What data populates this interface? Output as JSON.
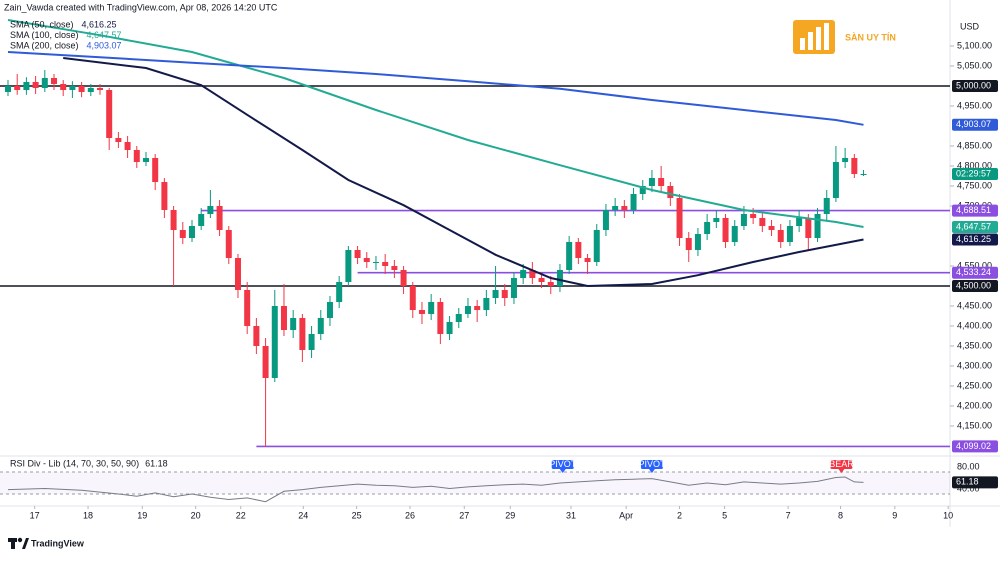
{
  "header": {
    "attribution": "Zain_Vawda created with TradingView.com, Apr 08, 2026 14:20 UTC",
    "currency": "USD",
    "brand": "SÀN UY TÍN",
    "footer": "TradingView",
    "countdown": "02:29:57"
  },
  "chart_data": [
    {
      "type": "candlestick",
      "up_color": "#089981",
      "down_color": "#f23645",
      "xlim": [
        -0.87,
        102.4
      ],
      "ylim": [
        4077.5,
        5180
      ],
      "x": [
        0,
        1,
        2,
        3,
        4,
        5,
        6,
        7,
        8,
        9,
        10,
        11,
        12,
        13,
        14,
        15,
        16,
        17,
        18,
        19,
        20,
        21,
        22,
        23,
        24,
        25,
        26,
        27,
        28,
        29,
        30,
        31,
        32,
        33,
        34,
        35,
        36,
        37,
        38,
        39,
        40,
        41,
        42,
        43,
        44,
        45,
        46,
        47,
        48,
        49,
        50,
        51,
        52,
        53,
        54,
        55,
        56,
        57,
        58,
        59,
        60,
        61,
        62,
        63,
        64,
        65,
        66,
        67,
        68,
        69,
        70,
        71,
        72,
        73,
        74,
        75,
        76,
        77,
        78,
        79,
        80,
        81,
        82,
        83,
        84,
        85,
        86,
        87,
        88,
        89,
        90,
        91,
        92,
        93
      ],
      "open": [
        4985,
        5000,
        4990,
        5010,
        4995,
        5020,
        5005,
        4990,
        5000,
        4985,
        4995,
        4990,
        4870,
        4860,
        4840,
        4810,
        4820,
        4760,
        4690,
        4640,
        4620,
        4650,
        4680,
        4700,
        4640,
        4570,
        4490,
        4400,
        4350,
        4270,
        4450,
        4390,
        4420,
        4340,
        4380,
        4420,
        4460,
        4510,
        4590,
        4570,
        4560,
        4560,
        4550,
        4540,
        4500,
        4440,
        4430,
        4460,
        4380,
        4410,
        4430,
        4450,
        4440,
        4470,
        4490,
        4470,
        4520,
        4540,
        4520,
        4510,
        4500,
        4540,
        4610,
        4570,
        4560,
        4640,
        4690,
        4700,
        4690,
        4730,
        4750,
        4770,
        4750,
        4720,
        4620,
        4590,
        4630,
        4660,
        4670,
        4610,
        4650,
        4680,
        4670,
        4650,
        4640,
        4610,
        4650,
        4670,
        4620,
        4680,
        4720,
        4810,
        4820,
        4780
      ],
      "high": [
        5015,
        5030,
        5022,
        5025,
        5040,
        5030,
        5015,
        5012,
        5010,
        5005,
        5005,
        4995,
        4885,
        4875,
        4850,
        4835,
        4830,
        4770,
        4700,
        4660,
        4665,
        4695,
        4740,
        4715,
        4650,
        4580,
        4510,
        4420,
        4370,
        4490,
        4505,
        4440,
        4430,
        4400,
        4440,
        4475,
        4525,
        4600,
        4600,
        4585,
        4575,
        4580,
        4565,
        4550,
        4510,
        4460,
        4480,
        4470,
        4425,
        4445,
        4470,
        4465,
        4490,
        4550,
        4505,
        4535,
        4555,
        4560,
        4535,
        4525,
        4555,
        4625,
        4620,
        4580,
        4655,
        4705,
        4720,
        4715,
        4745,
        4765,
        4790,
        4800,
        4760,
        4730,
        4635,
        4645,
        4680,
        4690,
        4680,
        4665,
        4700,
        4695,
        4685,
        4665,
        4655,
        4665,
        4690,
        4680,
        4695,
        4740,
        4850,
        4845,
        4830,
        4790
      ],
      "low": [
        4975,
        4978,
        4978,
        4980,
        4985,
        4990,
        4975,
        4970,
        4972,
        4975,
        4978,
        4840,
        4845,
        4820,
        4795,
        4800,
        4740,
        4670,
        4500,
        4605,
        4610,
        4640,
        4670,
        4625,
        4555,
        4470,
        4380,
        4330,
        4099,
        4260,
        4375,
        4370,
        4310,
        4320,
        4365,
        4400,
        4445,
        4500,
        4555,
        4545,
        4540,
        4530,
        4520,
        4480,
        4420,
        4405,
        4415,
        4355,
        4365,
        4395,
        4420,
        4410,
        4425,
        4455,
        4450,
        4455,
        4505,
        4505,
        4495,
        4480,
        4485,
        4530,
        4555,
        4530,
        4550,
        4625,
        4675,
        4670,
        4680,
        4715,
        4735,
        4735,
        4700,
        4600,
        4560,
        4575,
        4615,
        4645,
        4595,
        4600,
        4640,
        4655,
        4635,
        4625,
        4595,
        4600,
        4635,
        4590,
        4610,
        4665,
        4710,
        4795,
        4770,
        4775
      ],
      "close": [
        5000,
        4990,
        5010,
        4995,
        5020,
        5005,
        4990,
        5000,
        4985,
        4995,
        4990,
        4870,
        4860,
        4840,
        4810,
        4820,
        4760,
        4690,
        4640,
        4620,
        4650,
        4680,
        4700,
        4640,
        4570,
        4490,
        4400,
        4350,
        4270,
        4450,
        4390,
        4420,
        4340,
        4380,
        4420,
        4460,
        4510,
        4590,
        4570,
        4560,
        4560,
        4550,
        4540,
        4500,
        4440,
        4430,
        4460,
        4380,
        4410,
        4430,
        4450,
        4440,
        4470,
        4490,
        4470,
        4520,
        4540,
        4520,
        4510,
        4500,
        4540,
        4610,
        4570,
        4560,
        4640,
        4690,
        4700,
        4690,
        4730,
        4750,
        4770,
        4750,
        4720,
        4620,
        4590,
        4630,
        4660,
        4670,
        4610,
        4650,
        4680,
        4670,
        4650,
        4640,
        4610,
        4650,
        4670,
        4620,
        4680,
        4720,
        4810,
        4820,
        4780,
        4780
      ],
      "series": [
        {
          "name": "SMA (50, close)",
          "color": "#131a4a",
          "last_label": "4,616.25",
          "x": [
            6,
            15,
            21,
            26,
            32,
            37,
            43,
            48,
            53,
            59,
            63,
            70,
            75,
            81,
            86,
            93
          ],
          "values": [
            5070,
            5045,
            5002,
            4928,
            4840,
            4765,
            4702,
            4640,
            4578,
            4520,
            4500,
            4505,
            4527,
            4560,
            4585,
            4616.25
          ]
        },
        {
          "name": "SMA (100, close)",
          "color": "#22ab94",
          "last_label": "4,647.57",
          "x": [
            0,
            10,
            20,
            30,
            40,
            50,
            60,
            70,
            80,
            90,
            93
          ],
          "values": [
            5165,
            5127,
            5085,
            5020,
            4940,
            4865,
            4802,
            4740,
            4690,
            4660,
            4647.57
          ]
        },
        {
          "name": "SMA (200, close)",
          "color": "#2f5bd8",
          "last_label": "4,903.07",
          "x": [
            0,
            10,
            20,
            30,
            40,
            50,
            60,
            70,
            80,
            90,
            93
          ],
          "values": [
            5085,
            5072,
            5058,
            5045,
            5030,
            5012,
            4993,
            4965,
            4940,
            4915,
            4903.07
          ]
        }
      ],
      "levels": [
        {
          "value": 5000,
          "label": "5,000.00",
          "color": "#131722",
          "start": -0.87
        },
        {
          "value": 4500,
          "label": "4,500.00",
          "color": "#131722",
          "start": -0.87
        },
        {
          "value": 4688.51,
          "label": "4,688.51",
          "color": "#8a4fe0",
          "start": 21
        },
        {
          "value": 4533.24,
          "label": "4,533.24",
          "color": "#8a4fe0",
          "start": 38
        },
        {
          "value": 4099.02,
          "label": "4,099.02",
          "color": "#8a4fe0",
          "start": 27
        }
      ],
      "yticks": [
        {
          "value": 5100,
          "label": "5,100.00"
        },
        {
          "value": 5050,
          "label": "5,050.00"
        },
        {
          "value": 4950,
          "label": "4,950.00"
        },
        {
          "value": 4850,
          "label": "4,850.00"
        },
        {
          "value": 4800,
          "label": "4,800.00"
        },
        {
          "value": 4750,
          "label": "4,750.00"
        },
        {
          "value": 4700,
          "label": "4,700.00"
        },
        {
          "value": 4550,
          "label": "4,550.00"
        },
        {
          "value": 4450,
          "label": "4,450.00"
        },
        {
          "value": 4400,
          "label": "4,400.00"
        },
        {
          "value": 4350,
          "label": "4,350.00"
        },
        {
          "value": 4300,
          "label": "4,300.00"
        },
        {
          "value": 4250,
          "label": "4,250.00"
        },
        {
          "value": 4200,
          "label": "4,200.00"
        },
        {
          "value": 4150,
          "label": "4,150.00"
        }
      ],
      "xticks": [
        {
          "value": 2.9,
          "label": "17"
        },
        {
          "value": 8.7,
          "label": "18"
        },
        {
          "value": 14.6,
          "label": "19"
        },
        {
          "value": 20.4,
          "label": "20"
        },
        {
          "value": 25.3,
          "label": "22"
        },
        {
          "value": 32.1,
          "label": "24"
        },
        {
          "value": 37.9,
          "label": "25"
        },
        {
          "value": 43.7,
          "label": "26"
        },
        {
          "value": 49.6,
          "label": "27"
        },
        {
          "value": 54.6,
          "label": "29"
        },
        {
          "value": 61.2,
          "label": "31"
        },
        {
          "value": 67.2,
          "label": "Apr"
        },
        {
          "value": 73,
          "label": "2"
        },
        {
          "value": 77.9,
          "label": "5"
        },
        {
          "value": 84.8,
          "label": "7"
        },
        {
          "value": 90.5,
          "label": "8"
        },
        {
          "value": 96.4,
          "label": "9"
        },
        {
          "value": 102.2,
          "label": "10"
        }
      ]
    },
    {
      "type": "line",
      "title": "RSI Div - Lib (14, 70, 30, 50, 90)",
      "color": "#787b86",
      "xlim": [
        -0.87,
        102.4
      ],
      "ylim": [
        20,
        105.5
      ],
      "x": [
        0,
        4,
        8,
        12,
        14,
        16,
        18,
        20,
        22,
        24,
        26,
        28,
        30,
        32,
        34,
        36,
        38,
        40,
        42,
        44,
        46,
        48,
        50,
        52,
        54,
        56,
        58,
        60,
        62,
        64,
        66,
        68,
        70,
        72,
        74,
        76,
        78,
        80,
        82,
        84,
        86,
        88,
        90,
        91,
        92,
        93
      ],
      "values": [
        48,
        50,
        47,
        40,
        36,
        42,
        35,
        40,
        34,
        30,
        33,
        26,
        45,
        48,
        52,
        55,
        58,
        56,
        55,
        52,
        54,
        50,
        53,
        55,
        57,
        58,
        56,
        60,
        62,
        64,
        66,
        67,
        68,
        62,
        56,
        60,
        57,
        62,
        60,
        58,
        60,
        63,
        70,
        71,
        62,
        61.18
      ],
      "yticks": [
        {
          "value": 80,
          "label": "80.00"
        },
        {
          "value": 40,
          "label": "40.00"
        }
      ],
      "annotations": [
        {
          "label": "PIVOT",
          "x": 60.3,
          "color": "#2962ff"
        },
        {
          "label": "PIVOT",
          "x": 70,
          "color": "#2962ff"
        },
        {
          "label": "BEAR",
          "x": 90.6,
          "color": "#f23645"
        }
      ]
    }
  ]
}
